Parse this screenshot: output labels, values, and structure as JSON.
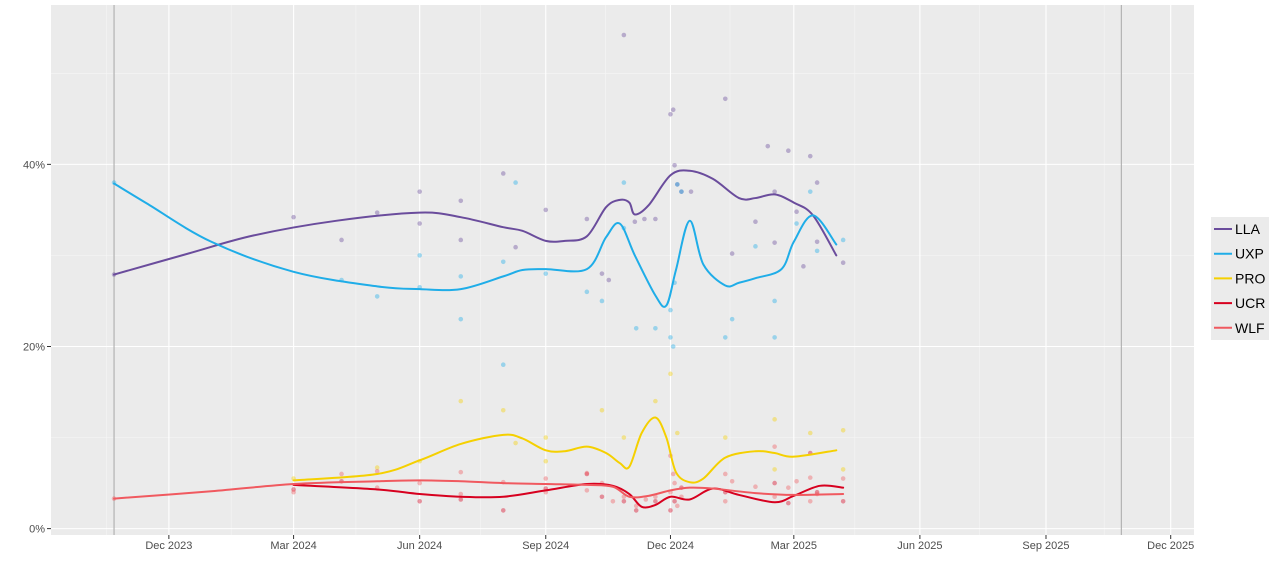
{
  "chart_data": {
    "type": "line",
    "title": "",
    "xlabel": "",
    "ylabel": "",
    "x_axis": {
      "type": "date",
      "range": [
        "2023-09-06",
        "2025-12-18"
      ],
      "ticks": [
        {
          "date": "2023-12-01",
          "label": "Dec 2023"
        },
        {
          "date": "2024-03-01",
          "label": "Mar 2024"
        },
        {
          "date": "2024-06-01",
          "label": "Jun 2024"
        },
        {
          "date": "2024-09-01",
          "label": "Sep 2024"
        },
        {
          "date": "2024-12-01",
          "label": "Dec 2024"
        },
        {
          "date": "2025-03-01",
          "label": "Mar 2025"
        },
        {
          "date": "2025-06-01",
          "label": "Jun 2025"
        },
        {
          "date": "2025-09-01",
          "label": "Sep 2025"
        },
        {
          "date": "2025-12-01",
          "label": "Dec 2025"
        }
      ],
      "reference_lines": [
        "2023-10-22",
        "2025-10-26"
      ]
    },
    "y_axis": {
      "range": [
        -0.7,
        57.5
      ],
      "ticks": [
        {
          "value": 0,
          "label": "0%"
        },
        {
          "value": 20,
          "label": "20%"
        },
        {
          "value": 40,
          "label": "40%"
        }
      ]
    },
    "grid": true,
    "legend": {
      "position": "right"
    },
    "series": [
      {
        "name": "LLA",
        "color": "#6a4c9c",
        "trend": [
          [
            "2023-10-22",
            27.9
          ],
          [
            "2023-12-15",
            30.2
          ],
          [
            "2024-02-01",
            32.2
          ],
          [
            "2024-04-01",
            33.8
          ],
          [
            "2024-06-01",
            34.7
          ],
          [
            "2024-07-01",
            34.2
          ],
          [
            "2024-08-01",
            33.1
          ],
          [
            "2024-08-15",
            32.7
          ],
          [
            "2024-09-01",
            31.6
          ],
          [
            "2024-09-15",
            31.6
          ],
          [
            "2024-10-01",
            32.1
          ],
          [
            "2024-10-15",
            35.3
          ],
          [
            "2024-10-25",
            36.1
          ],
          [
            "2024-11-01",
            35.8
          ],
          [
            "2024-11-05",
            34.5
          ],
          [
            "2024-11-15",
            35.5
          ],
          [
            "2024-12-01",
            38.8
          ],
          [
            "2024-12-15",
            39.3
          ],
          [
            "2025-01-01",
            38.4
          ],
          [
            "2025-01-20",
            36.3
          ],
          [
            "2025-02-01",
            36.3
          ],
          [
            "2025-02-15",
            36.7
          ],
          [
            "2025-03-01",
            35.8
          ],
          [
            "2025-03-15",
            34.4
          ],
          [
            "2025-04-01",
            30.0
          ]
        ],
        "points": [
          [
            "2023-10-22",
            27.9
          ],
          [
            "2024-03-01",
            34.2
          ],
          [
            "2024-04-05",
            31.7
          ],
          [
            "2024-05-01",
            34.7
          ],
          [
            "2024-06-01",
            37.0
          ],
          [
            "2024-06-01",
            33.5
          ],
          [
            "2024-07-01",
            31.7
          ],
          [
            "2024-07-01",
            36.0
          ],
          [
            "2024-08-01",
            39.0
          ],
          [
            "2024-08-10",
            30.9
          ],
          [
            "2024-09-01",
            35.0
          ],
          [
            "2024-10-01",
            34.0
          ],
          [
            "2024-10-12",
            28.0
          ],
          [
            "2024-10-17",
            27.3
          ],
          [
            "2024-10-28",
            54.2
          ],
          [
            "2024-11-05",
            33.7
          ],
          [
            "2024-11-12",
            34.0
          ],
          [
            "2024-11-20",
            34.0
          ],
          [
            "2024-12-01",
            45.5
          ],
          [
            "2024-12-03",
            46.0
          ],
          [
            "2024-12-04",
            39.9
          ],
          [
            "2024-12-06",
            37.8
          ],
          [
            "2024-12-09",
            37.0
          ],
          [
            "2024-12-16",
            37.0
          ],
          [
            "2025-01-10",
            47.2
          ],
          [
            "2025-01-15",
            30.2
          ],
          [
            "2025-02-01",
            33.7
          ],
          [
            "2025-02-10",
            42.0
          ],
          [
            "2025-02-15",
            37.0
          ],
          [
            "2025-02-15",
            31.4
          ],
          [
            "2025-02-25",
            41.5
          ],
          [
            "2025-03-03",
            34.8
          ],
          [
            "2025-03-08",
            28.8
          ],
          [
            "2025-03-13",
            40.9
          ],
          [
            "2025-03-18",
            38.0
          ],
          [
            "2025-03-18",
            31.5
          ],
          [
            "2025-04-06",
            29.2
          ]
        ]
      },
      {
        "name": "UXP",
        "color": "#1fade8",
        "trend": [
          [
            "2023-10-22",
            37.9
          ],
          [
            "2023-11-15",
            35.7
          ],
          [
            "2024-01-01",
            31.5
          ],
          [
            "2024-03-01",
            28.2
          ],
          [
            "2024-05-01",
            26.6
          ],
          [
            "2024-06-01",
            26.3
          ],
          [
            "2024-07-01",
            26.3
          ],
          [
            "2024-08-01",
            27.7
          ],
          [
            "2024-08-15",
            28.4
          ],
          [
            "2024-09-01",
            28.5
          ],
          [
            "2024-10-01",
            28.5
          ],
          [
            "2024-10-15",
            32.0
          ],
          [
            "2024-10-25",
            33.5
          ],
          [
            "2024-11-05",
            30.0
          ],
          [
            "2024-11-20",
            25.6
          ],
          [
            "2024-11-28",
            24.5
          ],
          [
            "2024-12-05",
            28.4
          ],
          [
            "2024-12-15",
            33.8
          ],
          [
            "2024-12-25",
            29.0
          ],
          [
            "2025-01-10",
            26.7
          ],
          [
            "2025-01-20",
            27.0
          ],
          [
            "2025-02-01",
            27.5
          ],
          [
            "2025-02-20",
            28.5
          ],
          [
            "2025-03-01",
            31.5
          ],
          [
            "2025-03-15",
            34.4
          ],
          [
            "2025-04-01",
            31.2
          ]
        ],
        "points": [
          [
            "2023-10-22",
            38.0
          ],
          [
            "2024-04-05",
            27.3
          ],
          [
            "2024-05-01",
            25.5
          ],
          [
            "2024-06-01",
            30.0
          ],
          [
            "2024-06-01",
            26.5
          ],
          [
            "2024-07-01",
            23.0
          ],
          [
            "2024-07-01",
            27.7
          ],
          [
            "2024-08-01",
            29.3
          ],
          [
            "2024-08-01",
            18.0
          ],
          [
            "2024-08-10",
            38.0
          ],
          [
            "2024-09-01",
            28.0
          ],
          [
            "2024-10-01",
            26.0
          ],
          [
            "2024-10-12",
            25.0
          ],
          [
            "2024-10-28",
            33.0
          ],
          [
            "2024-10-28",
            38.0
          ],
          [
            "2024-11-06",
            22.0
          ],
          [
            "2024-11-20",
            22.0
          ],
          [
            "2024-12-01",
            24.0
          ],
          [
            "2024-12-01",
            21.0
          ],
          [
            "2024-12-03",
            20.0
          ],
          [
            "2024-12-04",
            27.0
          ],
          [
            "2024-12-06",
            37.8
          ],
          [
            "2024-12-09",
            37.0
          ],
          [
            "2025-01-10",
            21.0
          ],
          [
            "2025-01-15",
            23.0
          ],
          [
            "2025-02-01",
            31.0
          ],
          [
            "2025-02-15",
            25.0
          ],
          [
            "2025-02-15",
            21.0
          ],
          [
            "2025-03-03",
            33.5
          ],
          [
            "2025-03-13",
            37.0
          ],
          [
            "2025-03-18",
            30.5
          ],
          [
            "2025-04-06",
            31.7
          ]
        ]
      },
      {
        "name": "PRO",
        "color": "#f5d000",
        "trend": [
          [
            "2024-03-01",
            5.3
          ],
          [
            "2024-05-01",
            6.0
          ],
          [
            "2024-06-01",
            7.5
          ],
          [
            "2024-07-01",
            9.3
          ],
          [
            "2024-08-01",
            10.3
          ],
          [
            "2024-08-15",
            9.9
          ],
          [
            "2024-09-01",
            8.6
          ],
          [
            "2024-09-15",
            8.5
          ],
          [
            "2024-10-01",
            9.0
          ],
          [
            "2024-10-15",
            8.3
          ],
          [
            "2024-10-25",
            7.2
          ],
          [
            "2024-11-01",
            6.8
          ],
          [
            "2024-11-10",
            10.5
          ],
          [
            "2024-11-20",
            12.2
          ],
          [
            "2024-11-28",
            10.0
          ],
          [
            "2024-12-05",
            6.2
          ],
          [
            "2024-12-15",
            5.1
          ],
          [
            "2024-12-25",
            5.5
          ],
          [
            "2025-01-10",
            7.8
          ],
          [
            "2025-02-01",
            8.5
          ],
          [
            "2025-02-15",
            8.3
          ],
          [
            "2025-03-01",
            7.9
          ],
          [
            "2025-04-01",
            8.6
          ]
        ],
        "points": [
          [
            "2024-03-01",
            5.5
          ],
          [
            "2024-05-01",
            6.7
          ],
          [
            "2024-06-01",
            7.4
          ],
          [
            "2024-07-01",
            14.0
          ],
          [
            "2024-08-01",
            13.0
          ],
          [
            "2024-08-10",
            9.4
          ],
          [
            "2024-09-01",
            10.0
          ],
          [
            "2024-09-01",
            7.4
          ],
          [
            "2024-10-12",
            13.0
          ],
          [
            "2024-10-28",
            10.0
          ],
          [
            "2024-11-20",
            14.0
          ],
          [
            "2024-12-01",
            17.0
          ],
          [
            "2024-12-06",
            10.5
          ],
          [
            "2025-01-10",
            10.0
          ],
          [
            "2025-02-15",
            12.0
          ],
          [
            "2025-02-15",
            6.5
          ],
          [
            "2025-03-13",
            10.5
          ],
          [
            "2025-04-06",
            10.8
          ],
          [
            "2025-04-06",
            6.5
          ]
        ]
      },
      {
        "name": "UCR",
        "color": "#d7001f",
        "trend": [
          [
            "2024-03-01",
            4.8
          ],
          [
            "2024-05-01",
            4.3
          ],
          [
            "2024-06-01",
            3.8
          ],
          [
            "2024-07-01",
            3.5
          ],
          [
            "2024-08-01",
            3.5
          ],
          [
            "2024-09-01",
            4.2
          ],
          [
            "2024-10-01",
            4.9
          ],
          [
            "2024-10-20",
            4.7
          ],
          [
            "2024-11-01",
            3.8
          ],
          [
            "2024-11-10",
            2.4
          ],
          [
            "2024-11-20",
            2.6
          ],
          [
            "2024-12-01",
            3.5
          ],
          [
            "2024-12-15",
            3.2
          ],
          [
            "2025-01-01",
            4.4
          ],
          [
            "2025-01-20",
            3.7
          ],
          [
            "2025-02-15",
            2.9
          ],
          [
            "2025-03-01",
            3.6
          ],
          [
            "2025-03-20",
            4.7
          ],
          [
            "2025-04-06",
            4.5
          ]
        ],
        "points": [
          [
            "2024-03-01",
            4.3
          ],
          [
            "2024-04-05",
            5.2
          ],
          [
            "2024-06-01",
            3.0
          ],
          [
            "2024-07-01",
            3.2
          ],
          [
            "2024-08-01",
            2.0
          ],
          [
            "2024-09-01",
            4.4
          ],
          [
            "2024-10-01",
            6.0
          ],
          [
            "2024-10-12",
            3.5
          ],
          [
            "2024-10-28",
            3.0
          ],
          [
            "2024-11-06",
            2.0
          ],
          [
            "2024-11-20",
            3.0
          ],
          [
            "2024-12-01",
            2.0
          ],
          [
            "2024-12-04",
            3.0
          ],
          [
            "2024-12-09",
            4.5
          ],
          [
            "2025-01-10",
            4.0
          ],
          [
            "2025-02-15",
            5.0
          ],
          [
            "2025-02-25",
            2.8
          ],
          [
            "2025-03-13",
            8.3
          ],
          [
            "2025-03-18",
            4.0
          ],
          [
            "2025-04-06",
            3.0
          ]
        ]
      },
      {
        "name": "WLF",
        "color": "#f0595f",
        "trend": [
          [
            "2023-10-22",
            3.3
          ],
          [
            "2024-01-01",
            4.1
          ],
          [
            "2024-03-01",
            4.9
          ],
          [
            "2024-05-01",
            5.2
          ],
          [
            "2024-06-01",
            5.3
          ],
          [
            "2024-07-01",
            5.2
          ],
          [
            "2024-08-01",
            5.0
          ],
          [
            "2024-09-01",
            4.9
          ],
          [
            "2024-10-01",
            4.8
          ],
          [
            "2024-10-20",
            4.6
          ],
          [
            "2024-11-01",
            3.5
          ],
          [
            "2024-11-15",
            3.6
          ],
          [
            "2024-12-01",
            4.2
          ],
          [
            "2024-12-15",
            4.5
          ],
          [
            "2025-01-01",
            4.4
          ],
          [
            "2025-02-01",
            3.9
          ],
          [
            "2025-03-01",
            3.7
          ],
          [
            "2025-04-06",
            3.8
          ]
        ],
        "points": [
          [
            "2023-10-22",
            3.3
          ],
          [
            "2024-03-01",
            4.0
          ],
          [
            "2024-04-05",
            6.0
          ],
          [
            "2024-05-01",
            6.3
          ],
          [
            "2024-05-01",
            4.5
          ],
          [
            "2024-06-01",
            5.0
          ],
          [
            "2024-07-01",
            6.2
          ],
          [
            "2024-07-01",
            3.8
          ],
          [
            "2024-08-01",
            5.1
          ],
          [
            "2024-09-01",
            5.5
          ],
          [
            "2024-09-01",
            4.0
          ],
          [
            "2024-10-01",
            6.1
          ],
          [
            "2024-10-01",
            4.2
          ],
          [
            "2024-10-12",
            5.0
          ],
          [
            "2024-10-20",
            3.0
          ],
          [
            "2024-10-28",
            3.5
          ],
          [
            "2024-11-06",
            2.5
          ],
          [
            "2024-11-13",
            3.2
          ],
          [
            "2024-11-20",
            3.5
          ],
          [
            "2024-12-01",
            8.0
          ],
          [
            "2024-12-01",
            4.0
          ],
          [
            "2024-12-03",
            6.0
          ],
          [
            "2024-12-04",
            5.0
          ],
          [
            "2024-12-06",
            2.5
          ],
          [
            "2024-12-09",
            3.5
          ],
          [
            "2025-01-10",
            6.0
          ],
          [
            "2025-01-10",
            3.0
          ],
          [
            "2025-01-15",
            5.2
          ],
          [
            "2025-02-01",
            4.6
          ],
          [
            "2025-02-15",
            3.5
          ],
          [
            "2025-02-15",
            9.0
          ],
          [
            "2025-02-25",
            4.5
          ],
          [
            "2025-03-03",
            5.2
          ],
          [
            "2025-03-13",
            5.6
          ],
          [
            "2025-03-13",
            3.0
          ],
          [
            "2025-03-18",
            3.8
          ],
          [
            "2025-04-06",
            5.5
          ]
        ]
      }
    ]
  }
}
